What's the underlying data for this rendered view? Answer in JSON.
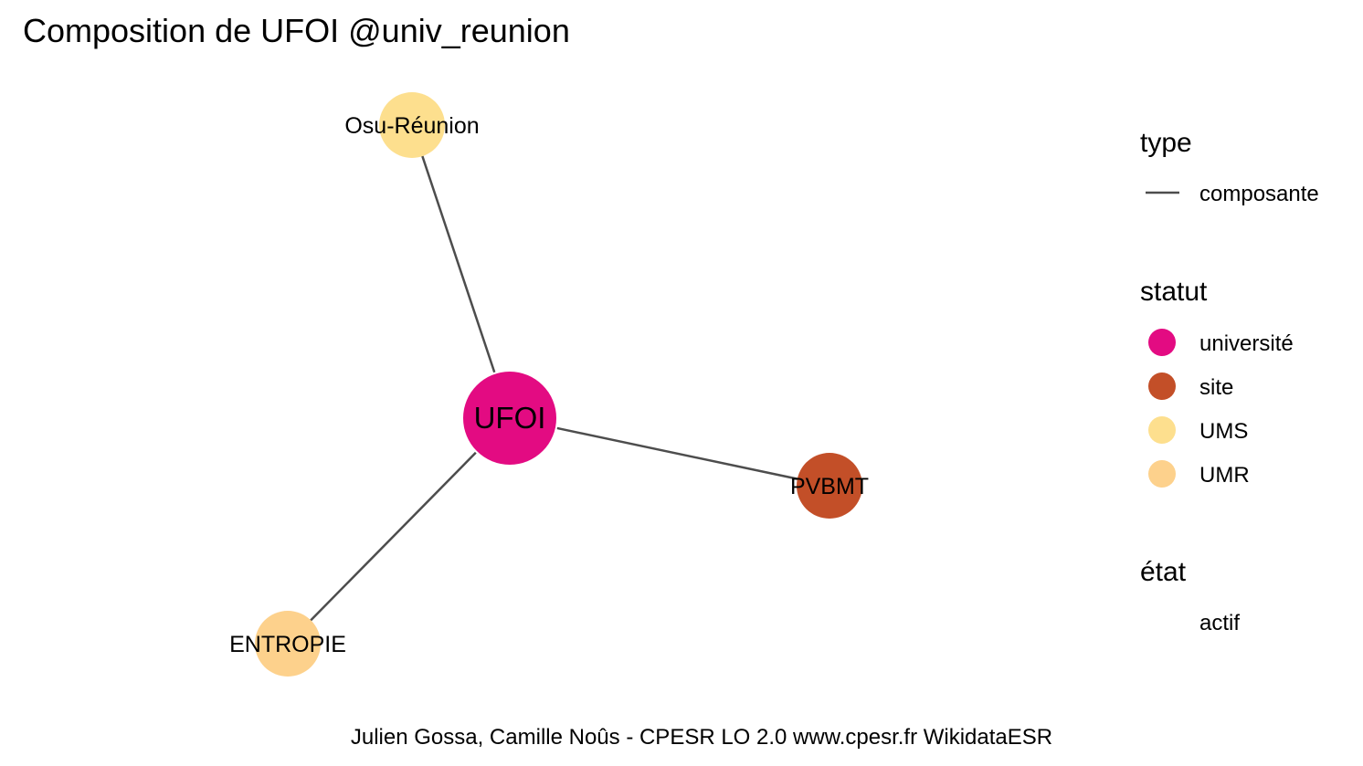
{
  "title": "Composition de UFOI @univ_reunion",
  "caption": "Julien Gossa, Camille Noûs - CPESR LO 2.0 www.cpesr.fr WikidataESR",
  "colors": {
    "edge": "#4d4d4d",
    "université": "#e30b82",
    "site": "#c34f28",
    "UMS": "#fddf8e",
    "UMR": "#fdd18c"
  },
  "nodes": [
    {
      "id": "ufoi",
      "label": "UFOI",
      "statut": "université"
    },
    {
      "id": "osu",
      "label": "Osu-Réunion",
      "statut": "UMS"
    },
    {
      "id": "pvbmt",
      "label": "PVBMT",
      "statut": "site"
    },
    {
      "id": "entropie",
      "label": "ENTROPIE",
      "statut": "UMR"
    }
  ],
  "edges": [
    {
      "from": "ufoi",
      "to": "osu",
      "type": "composante"
    },
    {
      "from": "ufoi",
      "to": "pvbmt",
      "type": "composante"
    },
    {
      "from": "ufoi",
      "to": "entropie",
      "type": "composante"
    }
  ],
  "legend": {
    "type": {
      "title": "type",
      "items": [
        "composante"
      ]
    },
    "statut": {
      "title": "statut",
      "items": [
        "université",
        "site",
        "UMS",
        "UMR"
      ]
    },
    "etat": {
      "title": "état",
      "items": [
        "actif"
      ]
    }
  }
}
